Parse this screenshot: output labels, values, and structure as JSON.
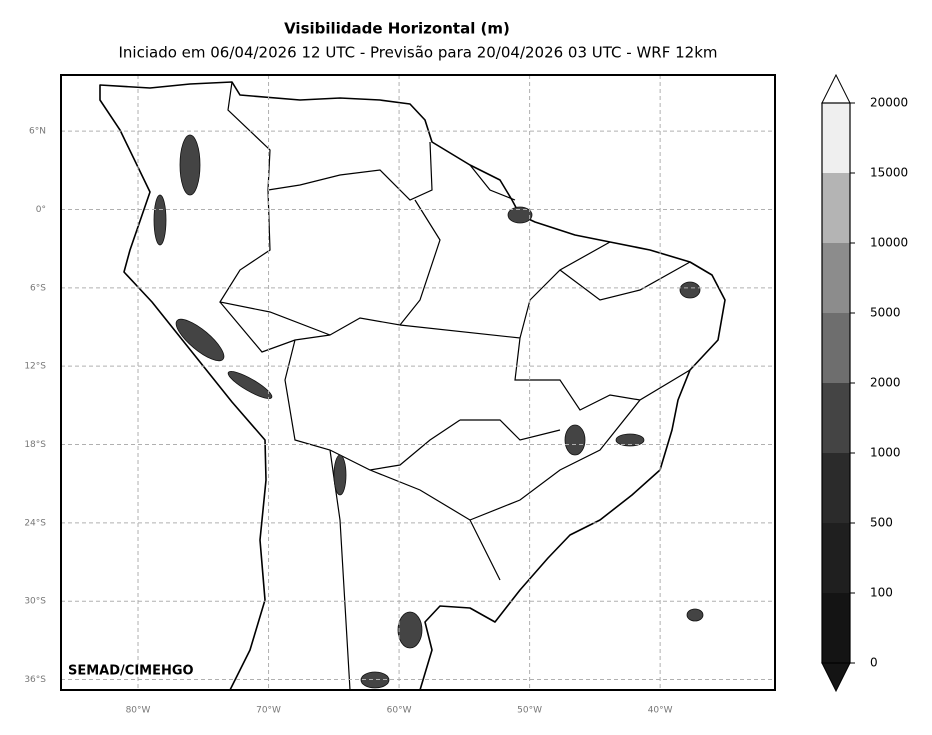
{
  "map": {
    "title": "Visibilidade Horizontal (m)",
    "subtitle": "Iniciado em 06/04/2026 12 UTC - Previsão para 20/04/2026 03 UTC - WRF 12km",
    "credit": "SEMAD/CIMEHGO",
    "lonlim": [
      -85.9,
      -31.2
    ],
    "latlim": [
      -36.8,
      10.3
    ],
    "grid": true,
    "lat_ticks": [
      {
        "value": 6,
        "label": "6°N"
      },
      {
        "value": 0,
        "label": "0°"
      },
      {
        "value": -6,
        "label": "6°S"
      },
      {
        "value": -12,
        "label": "12°S"
      },
      {
        "value": -18,
        "label": "18°S"
      },
      {
        "value": -24,
        "label": "24°S"
      },
      {
        "value": -30,
        "label": "30°S"
      },
      {
        "value": -36,
        "label": "36°S"
      }
    ],
    "lon_ticks": [
      {
        "value": -80,
        "label": "80°W"
      },
      {
        "value": -70,
        "label": "70°W"
      },
      {
        "value": -60,
        "label": "60°W"
      },
      {
        "value": -50,
        "label": "50°W"
      },
      {
        "value": -40,
        "label": "40°W"
      }
    ],
    "colorbar": {
      "levels": [
        0,
        100,
        500,
        1000,
        2000,
        5000,
        10000,
        15000,
        20000
      ],
      "colors": [
        "#141414",
        "#1f1f1f",
        "#2b2b2b",
        "#444444",
        "#6e6e6e",
        "#8c8c8c",
        "#b4b4b4",
        "#efefef"
      ],
      "under_color": "#141414",
      "over_color": "#ffffff"
    }
  }
}
